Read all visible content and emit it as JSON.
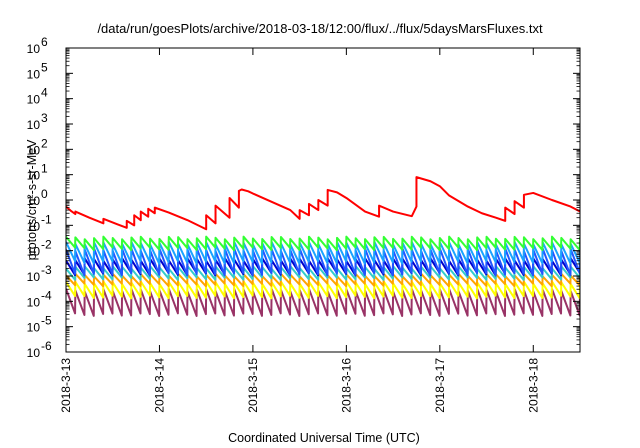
{
  "chart_data": {
    "type": "line",
    "title": "/data/run/goesPlots/archive/2018-03-18/12:00/flux/../flux/5daysMarsFluxes.txt",
    "xlabel": "Coordinated Universal Time (UTC)",
    "ylabel": "protons/cm²-s-sr-MeV",
    "y_scale": "log",
    "ylim": [
      1e-06,
      1000000.0
    ],
    "xlim": [
      0,
      5.5
    ],
    "x_ticks": [
      {
        "x": 0,
        "label": "2018-3-13"
      },
      {
        "x": 1,
        "label": "2018-3-14"
      },
      {
        "x": 2,
        "label": "2018-3-15"
      },
      {
        "x": 3,
        "label": "2018-3-16"
      },
      {
        "x": 4,
        "label": "2018-3-17"
      },
      {
        "x": 5,
        "label": "2018-3-18"
      }
    ],
    "y_ticks": [
      {
        "exp": -6,
        "label": "-6"
      },
      {
        "exp": -5,
        "label": "-5"
      },
      {
        "exp": -4,
        "label": "-4"
      },
      {
        "exp": -3,
        "label": "-3"
      },
      {
        "exp": -2,
        "label": "-2"
      },
      {
        "exp": -1,
        "label": "-1"
      },
      {
        "exp": 0,
        "label": "0"
      },
      {
        "exp": 1,
        "label": "1"
      },
      {
        "exp": 2,
        "label": "2"
      },
      {
        "exp": 3,
        "label": "3"
      },
      {
        "exp": 4,
        "label": "4"
      },
      {
        "exp": 5,
        "label": "5"
      },
      {
        "exp": 6,
        "label": "6"
      }
    ],
    "grid": false,
    "legend": "none",
    "series": [
      {
        "color": "#ff0000",
        "x": [
          0.0,
          0.05,
          0.1,
          0.1,
          0.25,
          0.4,
          0.4,
          0.55,
          0.65,
          0.65,
          0.73,
          0.73,
          0.8,
          0.8,
          0.88,
          0.88,
          0.95,
          0.95,
          1.1,
          1.3,
          1.5,
          1.5,
          1.6,
          1.6,
          1.75,
          1.75,
          1.85,
          1.85,
          1.88,
          1.95,
          2.0,
          2.2,
          2.4,
          2.5,
          2.5,
          2.6,
          2.6,
          2.7,
          2.7,
          2.8,
          2.8,
          2.9,
          3.0,
          3.2,
          3.35,
          3.35,
          3.5,
          3.7,
          3.75,
          3.75,
          3.9,
          4.0,
          4.1,
          4.3,
          4.45,
          4.6,
          4.7,
          4.7,
          4.8,
          4.8,
          4.9,
          4.9,
          5.0,
          5.2,
          5.4,
          5.5
        ],
        "y": [
          0.55,
          0.38,
          0.28,
          0.35,
          0.2,
          0.12,
          0.18,
          0.11,
          0.08,
          0.15,
          0.1,
          0.25,
          0.16,
          0.35,
          0.22,
          0.45,
          0.3,
          0.5,
          0.32,
          0.16,
          0.07,
          0.25,
          0.12,
          0.6,
          0.2,
          1.2,
          0.5,
          2.3,
          2.6,
          2.2,
          1.8,
          0.85,
          0.4,
          0.18,
          0.4,
          0.25,
          0.7,
          0.4,
          1.0,
          0.6,
          2.5,
          2.0,
          1.2,
          0.35,
          0.22,
          0.6,
          0.35,
          0.23,
          0.55,
          8.0,
          5.5,
          3.5,
          1.5,
          0.55,
          0.3,
          0.2,
          0.15,
          0.5,
          0.28,
          0.9,
          0.5,
          1.6,
          1.9,
          1.0,
          0.55,
          0.35
        ]
      },
      {
        "color": "#33ff33",
        "base": 0.012,
        "peak": 0.032
      },
      {
        "color": "#1aa3ff",
        "base": 0.0035,
        "peak": 0.02
      },
      {
        "color": "#2255ff",
        "base": 0.0012,
        "peak": 0.011
      },
      {
        "color": "#0000cc",
        "base": 0.0012,
        "peak": 0.0045
      },
      {
        "color": "#33cccc",
        "base": 0.0008,
        "peak": 0.0022
      },
      {
        "color": "#ffa500",
        "base": 0.00045,
        "peak": 0.0011
      },
      {
        "color": "#ffff00",
        "base": 0.00015,
        "peak": 0.00055
      },
      {
        "color": "#993366",
        "base": 3e-05,
        "peak": 0.00028
      }
    ],
    "sawtooth_period": 0.1
  }
}
